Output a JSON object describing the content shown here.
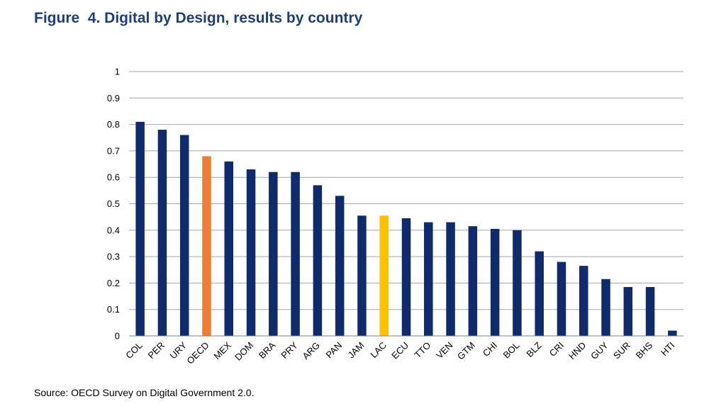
{
  "chart_data": {
    "type": "bar",
    "title": "Figure  4. Digital by Design, results by country",
    "xlabel": "",
    "ylabel": "",
    "ylim": [
      0,
      1
    ],
    "yticks": [
      "0",
      "0.1",
      "0.2",
      "0.3",
      "0.4",
      "0.5",
      "0.6",
      "0.7",
      "0.8",
      "0.9",
      "1"
    ],
    "grid": true,
    "categories": [
      "COL",
      "PER",
      "URY",
      "OECD",
      "MEX",
      "DOM",
      "BRA",
      "PRY",
      "ARG",
      "PAN",
      "JAM",
      "LAC",
      "ECU",
      "TTO",
      "VEN",
      "GTM",
      "CHI",
      "BOL",
      "BLZ",
      "CRI",
      "HND",
      "GUY",
      "SUR",
      "BHS",
      "HTI"
    ],
    "values": [
      0.81,
      0.78,
      0.76,
      0.68,
      0.66,
      0.63,
      0.62,
      0.62,
      0.57,
      0.53,
      0.455,
      0.455,
      0.445,
      0.43,
      0.43,
      0.415,
      0.405,
      0.4,
      0.32,
      0.28,
      0.265,
      0.215,
      0.185,
      0.185,
      0.02
    ],
    "colors": {
      "default": "#0f2b6b",
      "OECD": "#f07d34",
      "LAC": "#ffc000"
    }
  },
  "source": "Source: OECD Survey on Digital Government 2.0."
}
